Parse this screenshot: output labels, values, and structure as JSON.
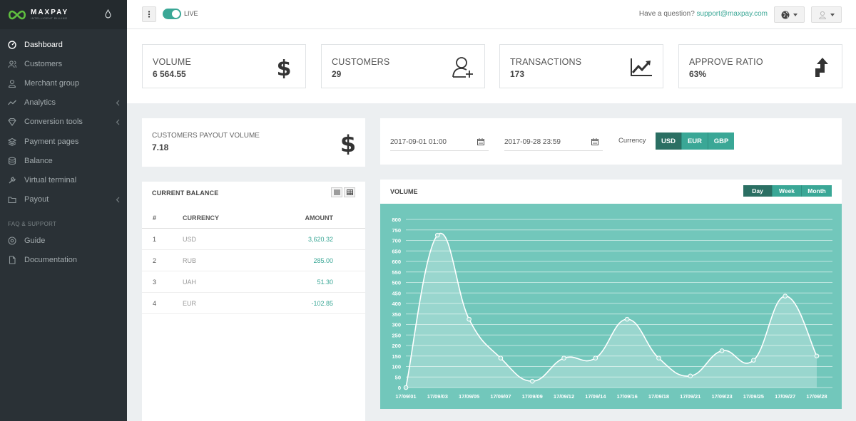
{
  "brand": {
    "name": "MAXPAY",
    "tagline": "INTELLIGENT BILLING"
  },
  "sidebar": {
    "items": [
      {
        "label": "Dashboard",
        "icon": "gauge-icon",
        "active": true,
        "chevron": false
      },
      {
        "label": "Customers",
        "icon": "users-icon",
        "active": false,
        "chevron": false
      },
      {
        "label": "Merchant group",
        "icon": "user-icon",
        "active": false,
        "chevron": false
      },
      {
        "label": "Analytics",
        "icon": "line-chart-icon",
        "active": false,
        "chevron": true
      },
      {
        "label": "Conversion tools",
        "icon": "diamond-icon",
        "active": false,
        "chevron": true
      },
      {
        "label": "Payment pages",
        "icon": "layers-icon",
        "active": false,
        "chevron": false
      },
      {
        "label": "Balance",
        "icon": "stack-icon",
        "active": false,
        "chevron": false
      },
      {
        "label": "Virtual terminal",
        "icon": "wrench-icon",
        "active": false,
        "chevron": false
      },
      {
        "label": "Payout",
        "icon": "folder-icon",
        "active": false,
        "chevron": true
      }
    ],
    "section_label": "FAQ & SUPPORT",
    "support_items": [
      {
        "label": "Guide",
        "icon": "disc-icon"
      },
      {
        "label": "Documentation",
        "icon": "file-icon"
      }
    ]
  },
  "topbar": {
    "live_label": "LIVE",
    "question_text": "Have a question?",
    "support_email": "support@maxpay.com"
  },
  "stats": [
    {
      "label": "VOLUME",
      "value": "6 564.55",
      "icon": "dollar-icon"
    },
    {
      "label": "CUSTOMERS",
      "value": "29",
      "icon": "add-user-icon"
    },
    {
      "label": "TRANSACTIONS",
      "value": "173",
      "icon": "trend-up-icon"
    },
    {
      "label": "APPROVE RATIO",
      "value": "63%",
      "icon": "arrow-up-icon"
    }
  ],
  "payout": {
    "label": "CUSTOMERS PAYOUT VOLUME",
    "value": "7.18"
  },
  "balance": {
    "title": "CURRENT BALANCE",
    "columns": [
      "#",
      "CURRENCY",
      "AMOUNT"
    ],
    "rows": [
      {
        "n": "1",
        "currency": "USD",
        "amount": "3,620.32"
      },
      {
        "n": "2",
        "currency": "RUB",
        "amount": "285.00"
      },
      {
        "n": "3",
        "currency": "UAH",
        "amount": "51.30"
      },
      {
        "n": "4",
        "currency": "EUR",
        "amount": "-102.85"
      }
    ]
  },
  "filters": {
    "date_from": "2017-09-01 01:00",
    "date_to": "2017-09-28 23:59",
    "currency_label": "Currency",
    "currencies": [
      "USD",
      "EUR",
      "GBP"
    ],
    "selected_currency": "USD"
  },
  "volume": {
    "title": "VOLUME",
    "periods": [
      "Day",
      "Week",
      "Month"
    ],
    "selected_period": "Day"
  },
  "chart_data": {
    "type": "area",
    "title": "VOLUME",
    "x": [
      "17/09/01",
      "17/09/03",
      "17/09/05",
      "17/09/07",
      "17/09/09",
      "17/09/12",
      "17/09/14",
      "17/09/16",
      "17/09/18",
      "17/09/21",
      "17/09/23",
      "17/09/25",
      "17/09/27",
      "17/09/28"
    ],
    "values": [
      0,
      725,
      325,
      140,
      30,
      140,
      140,
      325,
      140,
      55,
      175,
      130,
      435,
      150
    ],
    "ylim": [
      0,
      800
    ],
    "yticks": [
      0,
      50,
      100,
      150,
      200,
      250,
      300,
      350,
      400,
      450,
      500,
      550,
      600,
      650,
      700,
      750,
      800
    ],
    "grid": true,
    "colors": {
      "background": "#72c7bb",
      "line": "#ffffff"
    }
  }
}
